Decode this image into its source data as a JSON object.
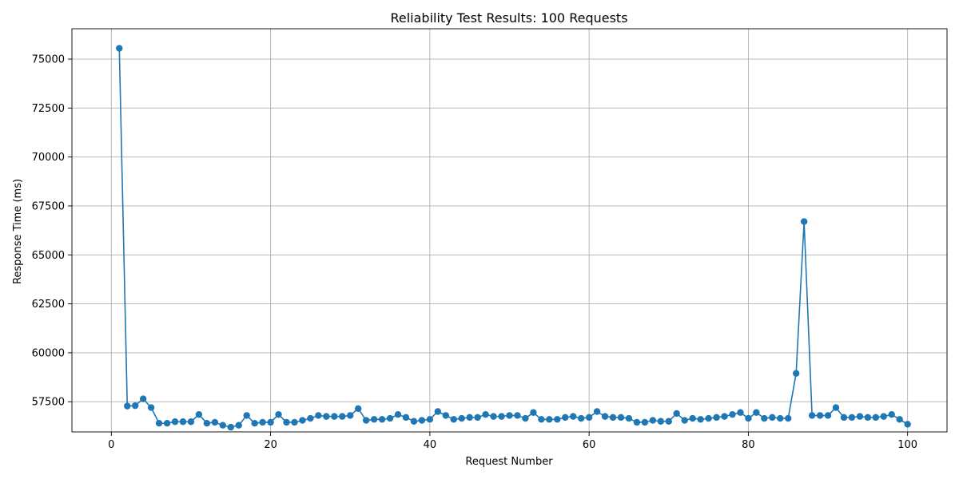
{
  "chart_data": {
    "type": "line",
    "title": "Reliability Test Results: 100 Requests",
    "xlabel": "Request Number",
    "ylabel": "Response Time (ms)",
    "xlim": [
      -4.95,
      104.95
    ],
    "ylim": [
      55960,
      76550
    ],
    "xticks": [
      0,
      20,
      40,
      60,
      80,
      100
    ],
    "yticks": [
      57500,
      60000,
      62500,
      65000,
      67500,
      70000,
      72500,
      75000
    ],
    "grid": true,
    "marker": "circle",
    "color": "#1f77b4",
    "series": [
      {
        "x": [
          1,
          2,
          3,
          4,
          5,
          6,
          7,
          8,
          9,
          10,
          11,
          12,
          13,
          14,
          15,
          16,
          17,
          18,
          19,
          20,
          21,
          22,
          23,
          24,
          25,
          26,
          27,
          28,
          29,
          30,
          31,
          32,
          33,
          34,
          35,
          36,
          37,
          38,
          39,
          40,
          41,
          42,
          43,
          44,
          45,
          46,
          47,
          48,
          49,
          50,
          51,
          52,
          53,
          54,
          55,
          56,
          57,
          58,
          59,
          60,
          61,
          62,
          63,
          64,
          65,
          66,
          67,
          68,
          69,
          70,
          71,
          72,
          73,
          74,
          75,
          76,
          77,
          78,
          79,
          80,
          81,
          82,
          83,
          84,
          85,
          86,
          87,
          88,
          89,
          90,
          91,
          92,
          93,
          94,
          95,
          96,
          97,
          98,
          99,
          100
        ],
        "values": [
          75550,
          57280,
          57300,
          57650,
          57200,
          56400,
          56400,
          56480,
          56480,
          56480,
          56850,
          56400,
          56450,
          56300,
          56200,
          56300,
          56800,
          56400,
          56450,
          56450,
          56850,
          56450,
          56450,
          56550,
          56650,
          56800,
          56750,
          56750,
          56750,
          56800,
          57150,
          56550,
          56600,
          56600,
          56650,
          56850,
          56700,
          56500,
          56550,
          56600,
          57000,
          56800,
          56600,
          56650,
          56700,
          56700,
          56850,
          56750,
          56750,
          56800,
          56800,
          56650,
          56950,
          56600,
          56600,
          56600,
          56700,
          56750,
          56650,
          56700,
          57000,
          56750,
          56700,
          56700,
          56650,
          56450,
          56450,
          56550,
          56500,
          56500,
          56900,
          56550,
          56650,
          56600,
          56650,
          56700,
          56750,
          56850,
          56950,
          56650,
          56950,
          56650,
          56700,
          56650,
          56650,
          58950,
          66700,
          56800,
          56800,
          56800,
          57200,
          56700,
          56700,
          56750,
          56700,
          56700,
          56750,
          56850,
          56600,
          56350
        ]
      }
    ]
  }
}
